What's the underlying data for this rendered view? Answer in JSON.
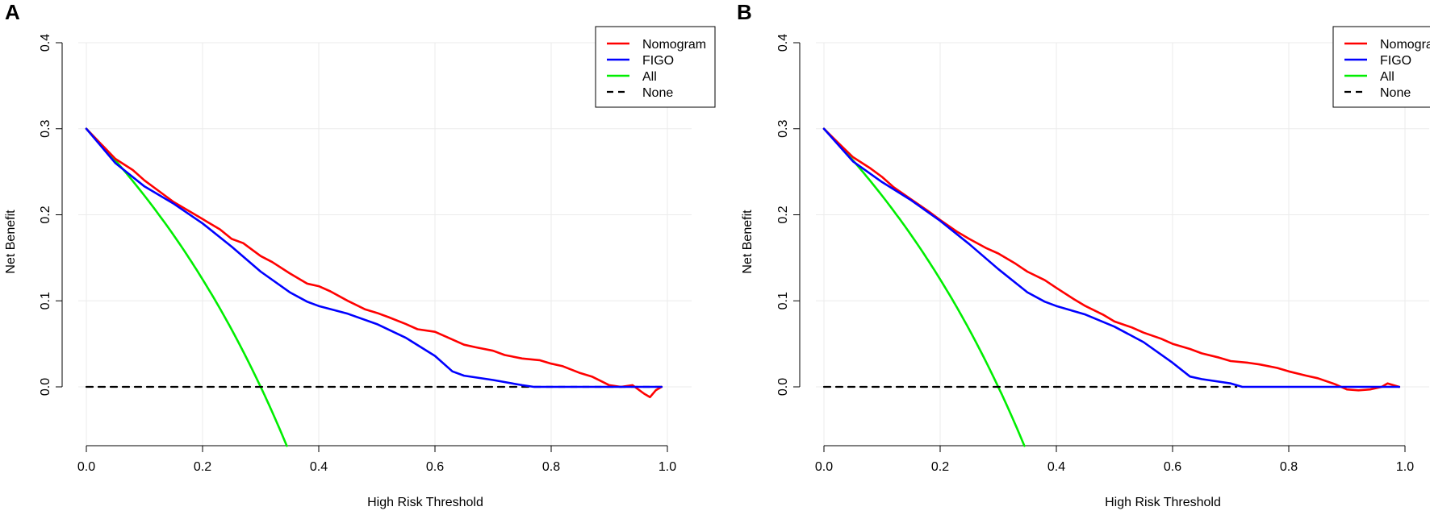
{
  "colors": {
    "nomogram": "#ff0000",
    "figo": "#0000ff",
    "all": "#00ee00",
    "none": "#000000",
    "grid": "#ebebeb"
  },
  "chart_data": [
    {
      "type": "line",
      "panel_label": "A",
      "title": "",
      "xlabel": "High Risk Threshold",
      "ylabel": "Net Benefit",
      "xlim": [
        0,
        1
      ],
      "ylim": [
        -0.07,
        0.4
      ],
      "xticks": [
        0.0,
        0.2,
        0.4,
        0.6,
        0.8,
        1.0
      ],
      "xtick_labels": [
        "0.0",
        "0.2",
        "0.4",
        "0.6",
        "0.8",
        "1.0"
      ],
      "yticks": [
        0.0,
        0.1,
        0.2,
        0.3,
        0.4
      ],
      "ytick_labels": [
        "0.0",
        "0.1",
        "0.2",
        "0.3",
        "0.4"
      ],
      "grid": true,
      "legend_position": "top-right",
      "series": [
        {
          "name": "Nomogram",
          "color_key": "nomogram",
          "dash": false,
          "x": [
            0.0,
            0.03,
            0.05,
            0.08,
            0.1,
            0.12,
            0.15,
            0.18,
            0.2,
            0.23,
            0.25,
            0.27,
            0.3,
            0.32,
            0.35,
            0.37,
            0.38,
            0.4,
            0.42,
            0.45,
            0.48,
            0.5,
            0.52,
            0.55,
            0.57,
            0.6,
            0.62,
            0.65,
            0.67,
            0.7,
            0.72,
            0.75,
            0.78,
            0.8,
            0.82,
            0.85,
            0.87,
            0.9,
            0.92,
            0.94,
            0.96,
            0.97,
            0.98,
            0.99
          ],
          "y": [
            0.3,
            0.279,
            0.265,
            0.252,
            0.24,
            0.23,
            0.215,
            0.203,
            0.195,
            0.183,
            0.172,
            0.167,
            0.152,
            0.145,
            0.132,
            0.124,
            0.12,
            0.117,
            0.111,
            0.1,
            0.09,
            0.086,
            0.081,
            0.073,
            0.067,
            0.064,
            0.058,
            0.049,
            0.046,
            0.042,
            0.037,
            0.033,
            0.031,
            0.027,
            0.024,
            0.016,
            0.012,
            0.002,
            0.0,
            0.002,
            -0.008,
            -0.012,
            -0.004,
            0.0
          ]
        },
        {
          "name": "FIGO",
          "color_key": "figo",
          "dash": false,
          "x": [
            0.0,
            0.05,
            0.1,
            0.15,
            0.2,
            0.25,
            0.3,
            0.35,
            0.38,
            0.4,
            0.45,
            0.5,
            0.55,
            0.6,
            0.63,
            0.65,
            0.7,
            0.75,
            0.77,
            0.8,
            0.85,
            0.9,
            0.95,
            0.99
          ],
          "y": [
            0.3,
            0.26,
            0.233,
            0.213,
            0.19,
            0.163,
            0.134,
            0.11,
            0.099,
            0.094,
            0.085,
            0.073,
            0.057,
            0.036,
            0.018,
            0.013,
            0.008,
            0.002,
            0.0,
            0.0,
            0.0,
            0.0,
            0.0,
            0.0
          ]
        },
        {
          "name": "All",
          "color_key": "all",
          "dash": false,
          "x": [
            0.0,
            0.345
          ],
          "y": [
            0.3,
            -0.069
          ],
          "formula": "0.3 - 0.7*t/(1-t)"
        },
        {
          "name": "None",
          "color_key": "none",
          "dash": true,
          "x": [
            0.0,
            0.99
          ],
          "y": [
            0.0,
            0.0
          ]
        }
      ]
    },
    {
      "type": "line",
      "panel_label": "B",
      "title": "",
      "xlabel": "High Risk Threshold",
      "ylabel": "Net Benefit",
      "xlim": [
        0,
        1
      ],
      "ylim": [
        -0.07,
        0.4
      ],
      "xticks": [
        0.0,
        0.2,
        0.4,
        0.6,
        0.8,
        1.0
      ],
      "xtick_labels": [
        "0.0",
        "0.2",
        "0.4",
        "0.6",
        "0.8",
        "1.0"
      ],
      "yticks": [
        0.0,
        0.1,
        0.2,
        0.3,
        0.4
      ],
      "ytick_labels": [
        "0.0",
        "0.1",
        "0.2",
        "0.3",
        "0.4"
      ],
      "grid": true,
      "legend_position": "top-right",
      "series": [
        {
          "name": "Nomogram",
          "color_key": "nomogram",
          "dash": false,
          "x": [
            0.0,
            0.03,
            0.05,
            0.08,
            0.1,
            0.12,
            0.15,
            0.18,
            0.2,
            0.23,
            0.25,
            0.28,
            0.3,
            0.33,
            0.35,
            0.38,
            0.4,
            0.43,
            0.45,
            0.48,
            0.5,
            0.53,
            0.55,
            0.58,
            0.6,
            0.63,
            0.65,
            0.68,
            0.7,
            0.73,
            0.75,
            0.78,
            0.8,
            0.83,
            0.85,
            0.88,
            0.9,
            0.92,
            0.94,
            0.96,
            0.97,
            0.98,
            0.99
          ],
          "y": [
            0.3,
            0.28,
            0.267,
            0.254,
            0.244,
            0.232,
            0.218,
            0.204,
            0.194,
            0.18,
            0.172,
            0.161,
            0.155,
            0.143,
            0.134,
            0.124,
            0.115,
            0.102,
            0.094,
            0.084,
            0.076,
            0.069,
            0.063,
            0.056,
            0.05,
            0.044,
            0.039,
            0.034,
            0.03,
            0.028,
            0.026,
            0.022,
            0.018,
            0.013,
            0.01,
            0.003,
            -0.003,
            -0.004,
            -0.003,
            0.0,
            0.004,
            0.002,
            0.0
          ]
        },
        {
          "name": "FIGO",
          "color_key": "figo",
          "dash": false,
          "x": [
            0.0,
            0.05,
            0.1,
            0.15,
            0.2,
            0.25,
            0.3,
            0.35,
            0.38,
            0.4,
            0.45,
            0.5,
            0.55,
            0.6,
            0.63,
            0.65,
            0.7,
            0.72,
            0.75,
            0.8,
            0.85,
            0.9,
            0.95,
            0.99
          ],
          "y": [
            0.3,
            0.262,
            0.238,
            0.217,
            0.193,
            0.166,
            0.137,
            0.11,
            0.099,
            0.094,
            0.084,
            0.07,
            0.052,
            0.028,
            0.012,
            0.009,
            0.004,
            0.0,
            0.0,
            0.0,
            0.0,
            0.0,
            0.0,
            0.0
          ]
        },
        {
          "name": "All",
          "color_key": "all",
          "dash": false,
          "x": [
            0.0,
            0.345
          ],
          "y": [
            0.3,
            -0.069
          ],
          "formula": "0.3 - 0.7*t/(1-t)"
        },
        {
          "name": "None",
          "color_key": "none",
          "dash": true,
          "x": [
            0.0,
            0.71
          ],
          "y": [
            0.0,
            0.0
          ]
        }
      ]
    }
  ]
}
